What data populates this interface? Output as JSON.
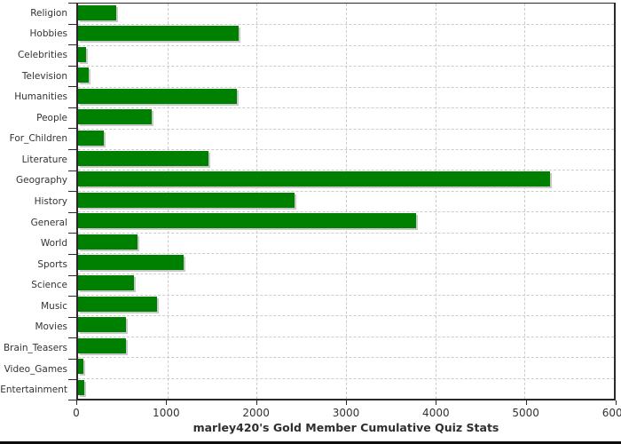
{
  "chart_data": {
    "type": "bar",
    "orientation": "horizontal",
    "title": "marley420's Gold Member Cumulative Quiz Stats",
    "categories": [
      "Religion",
      "Hobbies",
      "Celebrities",
      "Television",
      "Humanities",
      "People",
      "For_Children",
      "Literature",
      "Geography",
      "History",
      "General",
      "World",
      "Sports",
      "Science",
      "Music",
      "Movies",
      "Brain_Teasers",
      "Video_Games",
      "Entertainment"
    ],
    "values": [
      430,
      1800,
      90,
      115,
      1775,
      820,
      285,
      1460,
      5285,
      2420,
      3780,
      670,
      1185,
      625,
      880,
      535,
      535,
      60,
      70
    ],
    "xlabel": "",
    "ylabel": "",
    "xlim": [
      0,
      6000
    ],
    "x_ticks": [
      0,
      1000,
      2000,
      3000,
      4000,
      5000,
      6000
    ],
    "grid": "dashed",
    "legend": "none",
    "colors": {
      "bar": "#008000",
      "bar_shadow": "#c9c9c9",
      "gridline": "#cccccc",
      "axis": "#2a2a2a",
      "text": "#333333",
      "bottom_strip": "#0d0d0d"
    }
  }
}
